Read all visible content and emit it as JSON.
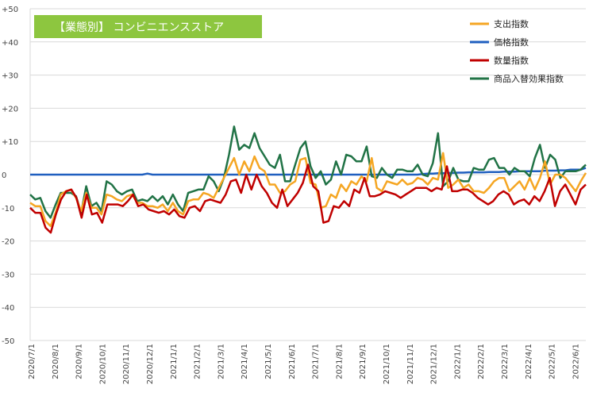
{
  "chart_data": {
    "type": "line",
    "title": "【業態別】 コンビニエンスストア",
    "title_bg": "#8DC63F",
    "ylim": [
      -50,
      50
    ],
    "yticks": [
      "+50",
      "+40",
      "+30",
      "+20",
      "+10",
      "0",
      "-10",
      "-20",
      "-30",
      "-40",
      "-50"
    ],
    "ytick_values": [
      50,
      40,
      30,
      20,
      10,
      0,
      -10,
      -20,
      -30,
      -40,
      -50
    ],
    "xticks": [
      "2020/7/1",
      "2020/8/1",
      "2020/9/1",
      "2020/10/1",
      "2020/11/1",
      "2020/12/1",
      "2021/1/1",
      "2021/2/1",
      "2021/3/1",
      "2021/4/1",
      "2021/5/1",
      "2021/6/1",
      "2021/7/1",
      "2021/8/1",
      "2021/9/1",
      "2021/10/1",
      "2021/11/1",
      "2021/12/1",
      "2022/1/1",
      "2022/2/1",
      "2022/3/1",
      "2022/4/1",
      "2022/5/1",
      "2022/6/1"
    ],
    "grid": "horizontal",
    "legend_position": "top-right",
    "series": [
      {
        "name": "支出指数",
        "color": "#F5A623",
        "values": [
          -8.5,
          -9.5,
          -9.5,
          -14,
          -15.5,
          -11.5,
          -6,
          -5,
          -4.5,
          -7,
          -11,
          -5.5,
          -10,
          -10,
          -12,
          -6,
          -6.5,
          -7.5,
          -8,
          -6.5,
          -6,
          -8.5,
          -8.5,
          -9.5,
          -9.5,
          -10,
          -9,
          -11,
          -8.5,
          -11,
          -12,
          -8,
          -7.5,
          -7.5,
          -5.5,
          -6,
          -7,
          -4,
          -1,
          2,
          5,
          0,
          4,
          1,
          5.5,
          2,
          1,
          -3,
          -3,
          -5.5,
          -5,
          -3,
          -2,
          4.5,
          5,
          -2.5,
          -3,
          -10,
          -9.5,
          -6,
          -7,
          -3,
          -5,
          -2,
          -3,
          -0.5,
          -2,
          5,
          -4,
          -5,
          -2,
          -2.5,
          -3,
          -1.5,
          -3,
          -2.5,
          -1,
          -1.5,
          -3,
          -1,
          -1.5,
          6.5,
          -4,
          -3,
          -1.5,
          -4,
          -3,
          -5,
          -5,
          -5.5,
          -4,
          -2,
          -1,
          -1,
          -5,
          -3.5,
          -2,
          -4.5,
          -1,
          -4.5,
          -1,
          4,
          -3,
          0,
          0,
          -1,
          -3,
          -5,
          -2,
          0.5
        ]
      },
      {
        "name": "価格指数",
        "color": "#1F5FBF",
        "values": [
          0,
          0,
          0,
          0,
          0,
          0,
          0,
          0,
          0,
          0,
          0,
          0,
          0,
          0,
          0,
          0,
          0,
          0,
          0,
          0,
          0,
          0,
          0,
          0.3,
          0,
          0,
          0,
          0,
          0,
          0,
          0,
          0,
          0,
          0,
          0,
          0,
          0,
          0,
          0,
          0,
          0,
          0,
          0,
          0,
          0,
          0,
          0,
          0,
          0,
          0,
          0,
          0,
          0,
          0,
          0,
          0,
          0,
          0,
          0,
          0,
          0,
          0,
          0,
          0,
          0,
          0,
          0,
          0,
          0,
          0,
          0,
          0,
          0,
          0,
          0,
          0,
          0,
          0.2,
          0.3,
          0.3,
          0.4,
          0.4,
          0.5,
          0.5,
          0.6,
          0.6,
          0.7,
          0.7,
          0.7,
          0.7,
          0.8,
          0.8,
          0.8,
          0.9,
          0.9,
          0.9,
          1,
          1,
          1,
          1,
          1,
          1.2,
          1.2,
          1.2,
          1.3,
          1.3,
          1.5,
          1.5,
          1.5,
          2
        ]
      },
      {
        "name": "数量指数",
        "color": "#C00000",
        "values": [
          -10,
          -11.5,
          -11.5,
          -16,
          -17.5,
          -12,
          -7.5,
          -5,
          -4.5,
          -7,
          -13,
          -6,
          -12,
          -11.5,
          -14.5,
          -9,
          -9,
          -9,
          -9.5,
          -8,
          -6,
          -9.5,
          -9,
          -10.5,
          -11,
          -11.5,
          -11,
          -12,
          -10.5,
          -12.5,
          -13,
          -10,
          -9.5,
          -11,
          -8,
          -7.5,
          -8,
          -8.5,
          -6,
          -2,
          -1.5,
          -5.5,
          0,
          -4.5,
          0,
          -3.5,
          -5.5,
          -8.5,
          -10,
          -4.5,
          -9.5,
          -7.5,
          -5.5,
          -2.5,
          3,
          -3.5,
          -5,
          -14.5,
          -14,
          -9.5,
          -10,
          -8,
          -9.5,
          -4.5,
          -5.5,
          -1,
          -6.5,
          -6.5,
          -6,
          -5,
          -5.5,
          -6,
          -7,
          -6,
          -5,
          -4,
          -4,
          -4,
          -5,
          -4,
          -4.5,
          2.5,
          -5,
          -5,
          -4.5,
          -4.5,
          -5.5,
          -7,
          -8,
          -9,
          -8,
          -6,
          -5,
          -6,
          -9,
          -8,
          -7.5,
          -9,
          -6.5,
          -8,
          -5,
          -1,
          -9.5,
          -5,
          -3,
          -6,
          -9,
          -4.5,
          -3
        ]
      },
      {
        "name": "商品入替効果指数",
        "color": "#217346",
        "values": [
          -6,
          -7.5,
          -7,
          -11,
          -13,
          -9,
          -5.5,
          -5.5,
          -5.5,
          -6.5,
          -11.5,
          -3.5,
          -9.5,
          -8.5,
          -11,
          -2,
          -3,
          -5,
          -6,
          -5,
          -4.5,
          -8,
          -7.5,
          -8,
          -6.5,
          -8,
          -6.5,
          -9,
          -6,
          -9,
          -11,
          -5.5,
          -5,
          -4.5,
          -4.5,
          -0.5,
          -2,
          -5,
          -1,
          6,
          14.5,
          7.5,
          9,
          8,
          12.5,
          8,
          5.5,
          3,
          2,
          6,
          -2,
          -2,
          3,
          8,
          10,
          2.5,
          -1,
          1,
          -3,
          -1.5,
          4,
          0,
          6,
          5.5,
          4,
          4,
          8.5,
          -0.5,
          -1,
          2,
          0,
          -1,
          1.5,
          1.5,
          1,
          1,
          3,
          0,
          -0.5,
          3.5,
          12.5,
          -3.5,
          -2,
          2,
          -1.5,
          -2,
          -2,
          2,
          1.5,
          1.5,
          4.5,
          5,
          2,
          2,
          0,
          2,
          1,
          1,
          -0.5,
          5,
          9,
          2,
          6,
          4.5,
          -1,
          1,
          1,
          1,
          1.5,
          3
        ]
      }
    ]
  }
}
